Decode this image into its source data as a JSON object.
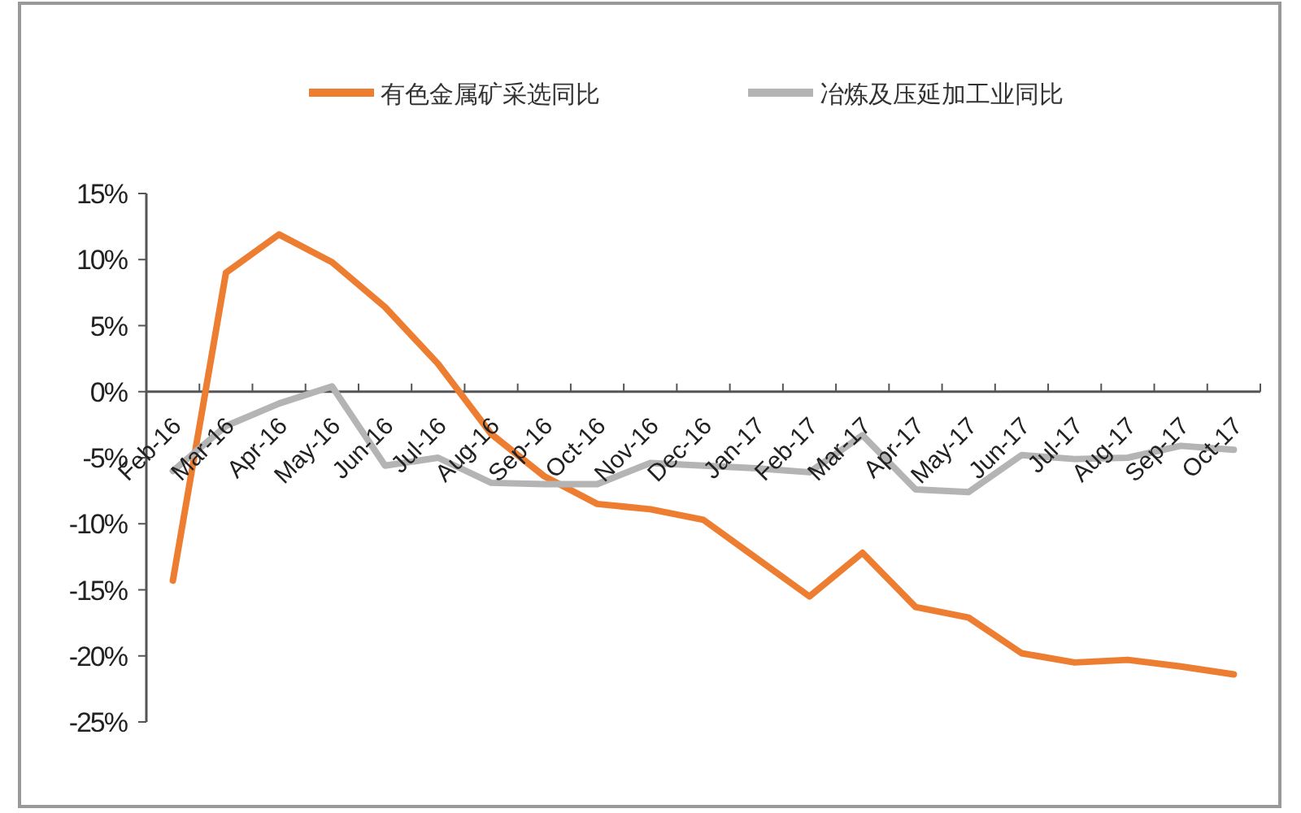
{
  "chart_data": {
    "type": "line",
    "categories": [
      "Feb-16",
      "Mar-16",
      "Apr-16",
      "May-16",
      "Jun-16",
      "Jul-16",
      "Aug-16",
      "Sep-16",
      "Oct-16",
      "Nov-16",
      "Dec-16",
      "Jan-17",
      "Feb-17",
      "Mar-17",
      "Apr-17",
      "May-17",
      "Jun-17",
      "Jul-17",
      "Aug-17",
      "Sep-17",
      "Oct-17"
    ],
    "series": [
      {
        "name": "有色金属矿采选同比",
        "color": "#ed7d31",
        "values": [
          -14.3,
          9,
          11.9,
          9.8,
          6.4,
          2.1,
          -3.2,
          -6.4,
          -8.5,
          -8.9,
          -9.7,
          -12.6,
          -15.5,
          -12.2,
          -16.3,
          -17.1,
          -19.8,
          -20.5,
          -20.3,
          -20.8,
          -21.4
        ]
      },
      {
        "name": "冶炼及压延加工业同比",
        "color": "#b4b4b4",
        "values": [
          -6,
          -2.6,
          -0.9,
          0.4,
          -5.6,
          -5,
          -6.9,
          -7,
          -7,
          -5.4,
          -5.6,
          -5.8,
          -6.1,
          -3.3,
          -7.4,
          -7.6,
          -4.8,
          -5.1,
          -5,
          -4.1,
          -4.4
        ]
      }
    ],
    "ylim": [
      -25,
      15
    ],
    "yticks": [
      {
        "value": 15,
        "label": "15%"
      },
      {
        "value": 10,
        "label": "10%"
      },
      {
        "value": 5,
        "label": "5%"
      },
      {
        "value": 0,
        "label": "0%"
      },
      {
        "value": -5,
        "label": "-5%"
      },
      {
        "value": -10,
        "label": "-10%"
      },
      {
        "value": -15,
        "label": "-15%"
      },
      {
        "value": -20,
        "label": "-20%"
      },
      {
        "value": -25,
        "label": "-25%"
      }
    ],
    "legend": "top",
    "grid": false
  }
}
